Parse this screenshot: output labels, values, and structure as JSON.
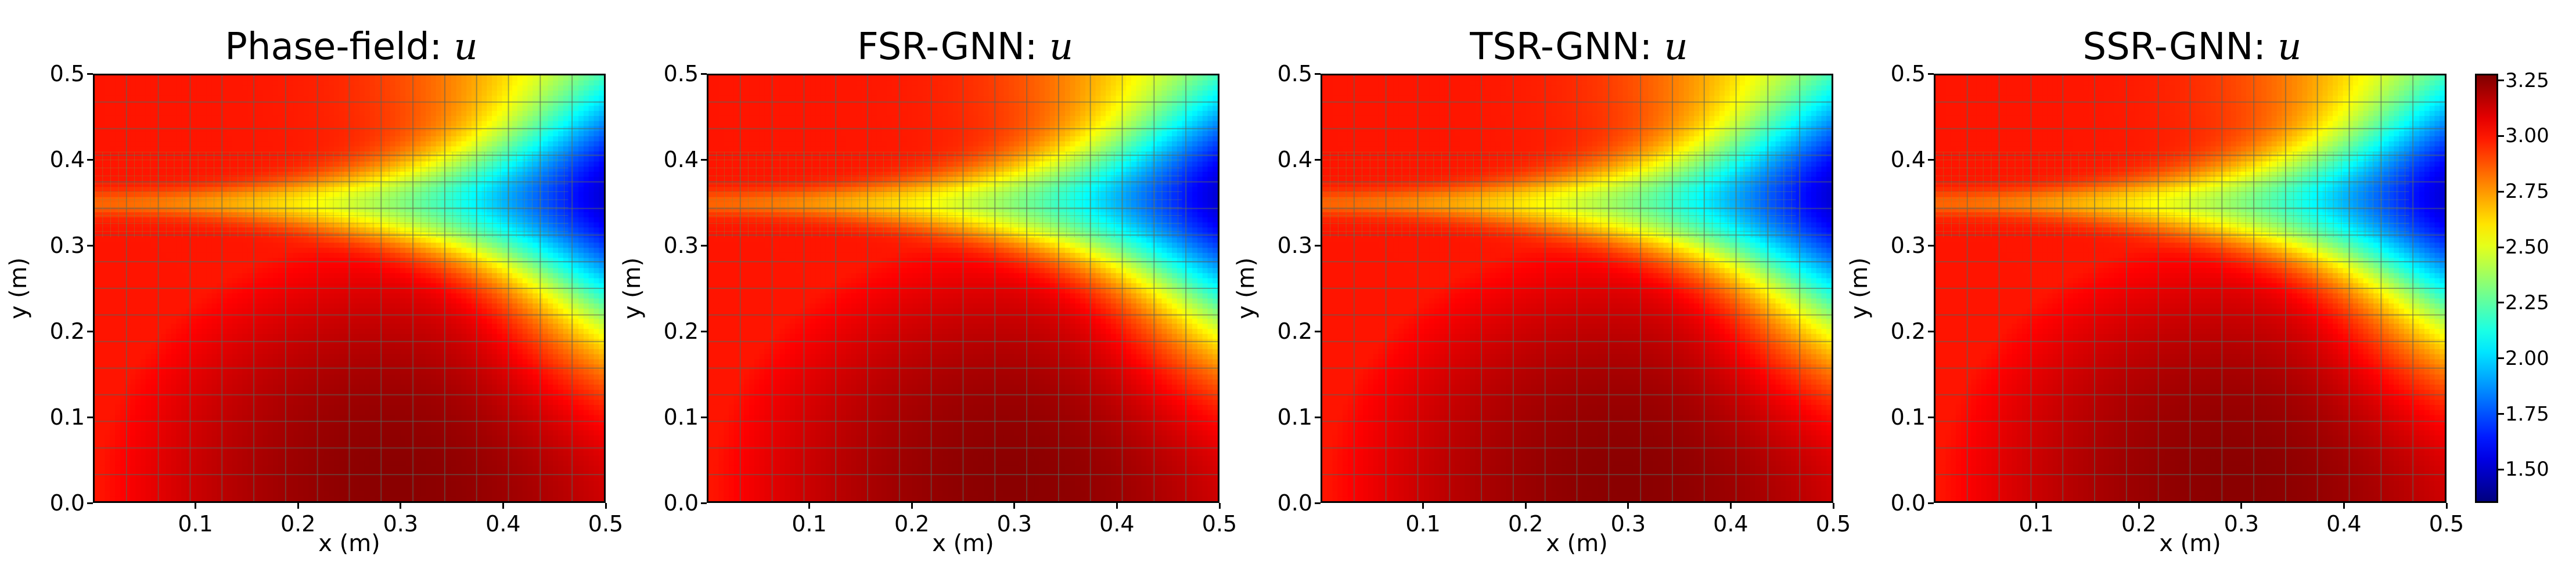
{
  "panels": [
    {
      "title": "Phase-field: ",
      "var": "u",
      "xlabel": "x (m)",
      "ylabel": "y (m)"
    },
    {
      "title": "FSR-GNN: ",
      "var": "u",
      "xlabel": "x (m)",
      "ylabel": "y (m)"
    },
    {
      "title": "TSR-GNN: ",
      "var": "u",
      "xlabel": "x (m)",
      "ylabel": "y (m)"
    },
    {
      "title": "SSR-GNN: ",
      "var": "u",
      "xlabel": "x (m)",
      "ylabel": "y (m)"
    }
  ],
  "chart_data": {
    "type": "heatmap",
    "xlim": [
      0,
      0.5
    ],
    "ylim": [
      0,
      0.5
    ],
    "xticks": [
      "0.1",
      "0.2",
      "0.3",
      "0.4",
      "0.5"
    ],
    "yticks": [
      "0.0",
      "0.1",
      "0.2",
      "0.3",
      "0.4",
      "0.5"
    ],
    "colormap": "jet",
    "colorbar": {
      "min": 1.35,
      "max": 3.28,
      "ticks": [
        "1.50",
        "1.75",
        "2.00",
        "2.25",
        "2.50",
        "2.75",
        "3.00",
        "3.25"
      ]
    },
    "field_description_values": {
      "crack_y": 0.35,
      "crack_tip_x": 0.46,
      "min_value_at_right_of_crack": 1.9,
      "max_value_near_bottom_center": 3.25,
      "background_value": 3.0
    },
    "mesh": {
      "coarse_cells": 16,
      "refined_band_y": [
        0.31,
        0.41
      ]
    }
  }
}
